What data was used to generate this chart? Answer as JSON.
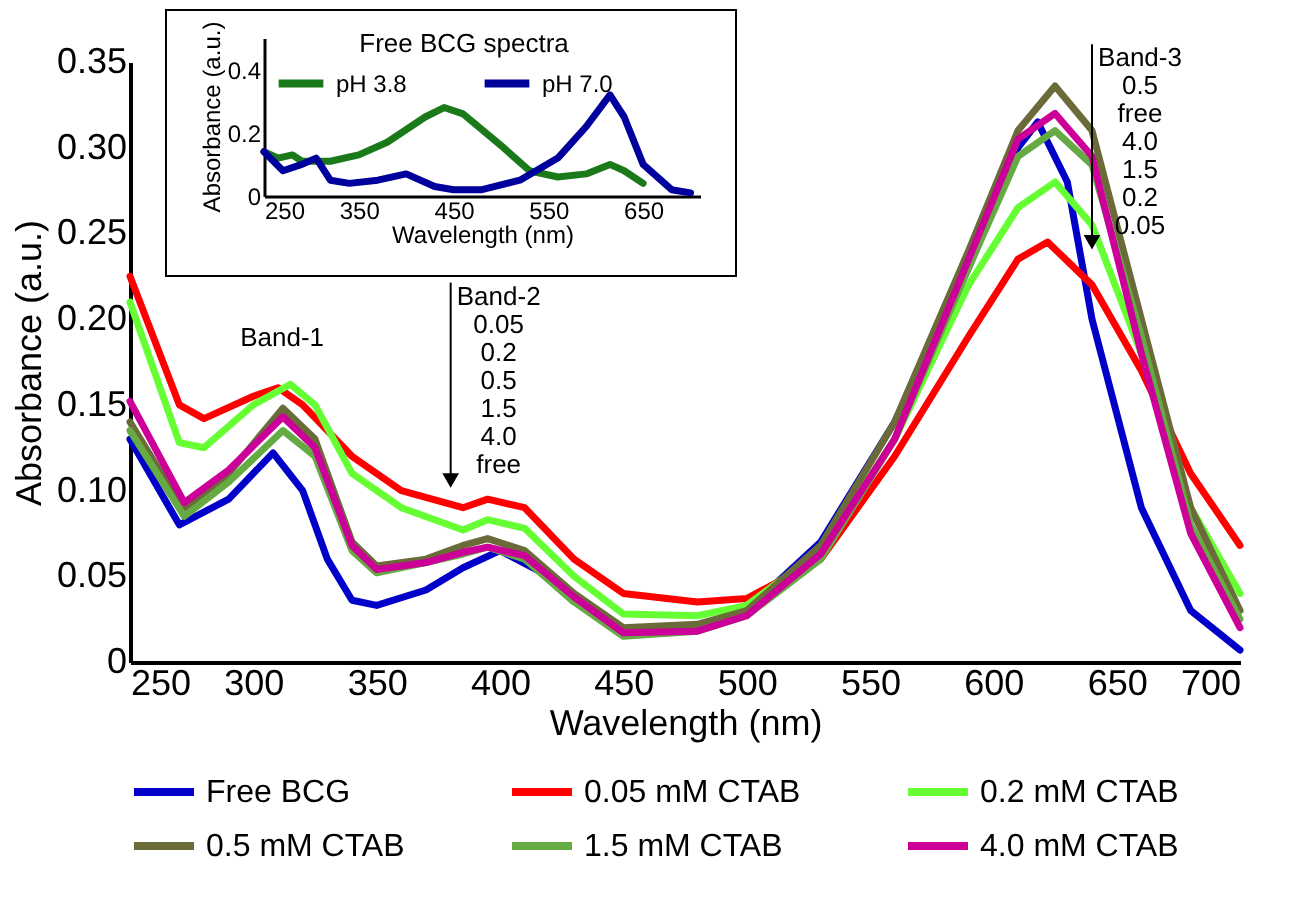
{
  "chart_data": [
    {
      "type": "line",
      "xlabel": "Wavelength (nm)",
      "ylabel": "Absorbance (a.u.)",
      "xlim": [
        250,
        700
      ],
      "xticks": [
        250,
        300,
        350,
        400,
        450,
        500,
        550,
        600,
        650,
        700
      ],
      "ylim": [
        0,
        0.35
      ],
      "yticks": [
        {
          "value": 0,
          "label": "0"
        },
        0.05,
        {
          "value": 0.1,
          "label": "0.10"
        },
        0.15,
        {
          "value": 0.2,
          "label": "0.20"
        },
        0.25,
        {
          "value": 0.3,
          "label": "0.30"
        },
        0.35
      ],
      "legend": "bottom",
      "series": [
        {
          "name": "Free BCG",
          "color": "#0000c8",
          "x": [
            250,
            270,
            290,
            308,
            320,
            330,
            340,
            350,
            370,
            385,
            400,
            420,
            450,
            480,
            500,
            530,
            560,
            590,
            610,
            618,
            630,
            640,
            660,
            680,
            700
          ],
          "values": [
            0.13,
            0.08,
            0.095,
            0.122,
            0.1,
            0.06,
            0.036,
            0.033,
            0.042,
            0.055,
            0.065,
            0.05,
            0.018,
            0.02,
            0.03,
            0.07,
            0.14,
            0.23,
            0.3,
            0.315,
            0.28,
            0.2,
            0.09,
            0.03,
            0.007
          ]
        },
        {
          "name": "0.05 mM CTAB",
          "color": "#ff0000",
          "x": [
            250,
            270,
            280,
            300,
            310,
            320,
            340,
            360,
            385,
            395,
            410,
            430,
            450,
            480,
            500,
            530,
            560,
            590,
            610,
            622,
            640,
            660,
            680,
            700
          ],
          "values": [
            0.225,
            0.15,
            0.142,
            0.155,
            0.16,
            0.15,
            0.12,
            0.1,
            0.09,
            0.095,
            0.09,
            0.06,
            0.04,
            0.035,
            0.037,
            0.06,
            0.12,
            0.19,
            0.235,
            0.245,
            0.22,
            0.17,
            0.11,
            0.068
          ]
        },
        {
          "name": "0.2 mM CTAB",
          "color": "#66ff33",
          "x": [
            250,
            270,
            280,
            300,
            315,
            325,
            340,
            360,
            385,
            395,
            410,
            430,
            450,
            480,
            500,
            530,
            560,
            590,
            610,
            625,
            640,
            660,
            680,
            700
          ],
          "values": [
            0.21,
            0.128,
            0.125,
            0.15,
            0.162,
            0.15,
            0.11,
            0.09,
            0.077,
            0.083,
            0.078,
            0.05,
            0.028,
            0.027,
            0.033,
            0.065,
            0.13,
            0.22,
            0.265,
            0.28,
            0.255,
            0.18,
            0.09,
            0.04
          ]
        },
        {
          "name": "0.5 mM CTAB",
          "color": "#6b6b3a",
          "x": [
            250,
            272,
            290,
            312,
            325,
            340,
            350,
            370,
            385,
            395,
            410,
            430,
            450,
            480,
            500,
            530,
            560,
            590,
            610,
            625,
            640,
            660,
            680,
            700
          ],
          "values": [
            0.14,
            0.088,
            0.11,
            0.148,
            0.13,
            0.07,
            0.056,
            0.06,
            0.068,
            0.072,
            0.065,
            0.04,
            0.02,
            0.022,
            0.03,
            0.068,
            0.14,
            0.24,
            0.31,
            0.336,
            0.31,
            0.2,
            0.09,
            0.03
          ]
        },
        {
          "name": "1.5 mM CTAB",
          "color": "#66aa44",
          "x": [
            250,
            272,
            290,
            312,
            325,
            340,
            350,
            370,
            385,
            395,
            410,
            430,
            450,
            480,
            500,
            530,
            560,
            590,
            610,
            625,
            640,
            660,
            680,
            700
          ],
          "values": [
            0.135,
            0.085,
            0.105,
            0.135,
            0.12,
            0.065,
            0.052,
            0.058,
            0.063,
            0.067,
            0.06,
            0.035,
            0.015,
            0.018,
            0.027,
            0.06,
            0.13,
            0.23,
            0.295,
            0.31,
            0.29,
            0.19,
            0.08,
            0.025
          ]
        },
        {
          "name": "4.0 mM CTAB",
          "color": "#cc0099",
          "x": [
            250,
            272,
            290,
            312,
            325,
            340,
            350,
            370,
            385,
            395,
            410,
            430,
            450,
            480,
            500,
            530,
            560,
            590,
            610,
            625,
            640,
            660,
            680,
            700
          ],
          "values": [
            0.152,
            0.093,
            0.112,
            0.143,
            0.125,
            0.068,
            0.054,
            0.058,
            0.064,
            0.067,
            0.062,
            0.038,
            0.017,
            0.018,
            0.027,
            0.063,
            0.13,
            0.235,
            0.305,
            0.32,
            0.295,
            0.18,
            0.075,
            0.02
          ]
        }
      ],
      "annotations": [
        "Band-1",
        {
          "text": "Band-2\n0.05\n0.2\n0.5\n1.5\n4.0\nfree",
          "x": 380,
          "y": 0.1
        },
        {
          "text": "Band-3\n0.5\nfree\n4.0\n1.5\n0.2\n0.05",
          "x": 640,
          "y": 0.239
        }
      ]
    },
    {
      "type": "line",
      "title": "Free BCG spectra",
      "xlabel": "Wavelength (nm)",
      "ylabel": "Absorbance (a.u.)",
      "xlim": [
        250,
        710
      ],
      "xticks": [
        250,
        350,
        450,
        550,
        650
      ],
      "ylim": [
        0,
        0.5
      ],
      "yticks": [
        {
          "value": 0,
          "label": "0"
        },
        0.2,
        0.4
      ],
      "legend": "top",
      "series": [
        {
          "name": "pH 3.8",
          "color": "#1a7a1a",
          "x": [
            250,
            265,
            280,
            290,
            320,
            350,
            380,
            420,
            440,
            460,
            500,
            530,
            560,
            590,
            615,
            630,
            650
          ],
          "values": [
            0.14,
            0.12,
            0.13,
            0.11,
            0.11,
            0.13,
            0.17,
            0.25,
            0.28,
            0.26,
            0.16,
            0.08,
            0.06,
            0.07,
            0.1,
            0.08,
            0.04
          ]
        },
        {
          "name": "pH 7.0",
          "color": "#00009c",
          "x": [
            250,
            270,
            290,
            305,
            320,
            340,
            370,
            400,
            430,
            450,
            480,
            520,
            560,
            590,
            615,
            630,
            650,
            680,
            700
          ],
          "values": [
            0.14,
            0.08,
            0.1,
            0.12,
            0.05,
            0.04,
            0.05,
            0.07,
            0.03,
            0.02,
            0.02,
            0.05,
            0.12,
            0.22,
            0.32,
            0.25,
            0.1,
            0.02,
            0.01
          ]
        }
      ]
    }
  ]
}
